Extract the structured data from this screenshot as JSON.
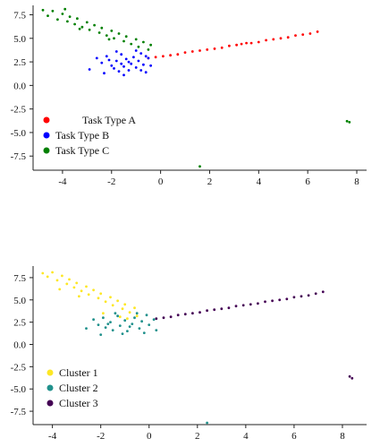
{
  "chart_data": [
    {
      "type": "scatter",
      "title": "",
      "xlabel": "",
      "ylabel": "",
      "xlim": [
        -5.2,
        8.4
      ],
      "ylim": [
        -9.0,
        8.5
      ],
      "x_ticks": [
        "-4",
        "-2",
        "0",
        "2",
        "4",
        "6",
        "8"
      ],
      "y_ticks": [
        "7.5",
        "5.0",
        "2.5",
        "0.0",
        "-2.5",
        "-5.0",
        "-7.5"
      ],
      "legend_position": "lower-left",
      "grid": false,
      "series": [
        {
          "name": "Task Type A",
          "color": "#ff0000",
          "points": [
            [
              -0.5,
              2.9
            ],
            [
              -0.2,
              3.0
            ],
            [
              0.1,
              3.1
            ],
            [
              0.4,
              3.2
            ],
            [
              0.7,
              3.3
            ],
            [
              1.0,
              3.5
            ],
            [
              1.3,
              3.6
            ],
            [
              1.6,
              3.7
            ],
            [
              1.9,
              3.8
            ],
            [
              2.2,
              3.9
            ],
            [
              2.5,
              4.0
            ],
            [
              2.8,
              4.2
            ],
            [
              3.1,
              4.3
            ],
            [
              3.3,
              4.4
            ],
            [
              3.5,
              4.5
            ],
            [
              3.7,
              4.5
            ],
            [
              4.0,
              4.6
            ],
            [
              4.3,
              4.8
            ],
            [
              4.6,
              4.9
            ],
            [
              4.9,
              5.0
            ],
            [
              5.2,
              5.1
            ],
            [
              5.5,
              5.3
            ],
            [
              5.8,
              5.4
            ],
            [
              6.1,
              5.5
            ],
            [
              6.4,
              5.7
            ]
          ]
        },
        {
          "name": "Task Type B",
          "color": "#0000ff",
          "points": [
            [
              -2.6,
              2.9
            ],
            [
              -2.4,
              2.4
            ],
            [
              -2.2,
              3.1
            ],
            [
              -2.0,
              2.1
            ],
            [
              -1.9,
              1.8
            ],
            [
              -1.8,
              2.6
            ],
            [
              -1.7,
              1.5
            ],
            [
              -1.6,
              3.3
            ],
            [
              -1.5,
              2.0
            ],
            [
              -1.4,
              2.8
            ],
            [
              -1.3,
              1.6
            ],
            [
              -1.2,
              2.3
            ],
            [
              -1.1,
              3.0
            ],
            [
              -1.0,
              1.9
            ],
            [
              -0.9,
              2.6
            ],
            [
              -0.8,
              3.4
            ],
            [
              -0.7,
              2.2
            ],
            [
              -0.6,
              1.4
            ],
            [
              -0.5,
              2.9
            ],
            [
              -0.4,
              2.1
            ],
            [
              -2.9,
              1.7
            ],
            [
              -2.3,
              1.3
            ],
            [
              -1.8,
              3.6
            ],
            [
              -1.5,
              1.1
            ],
            [
              -1.0,
              3.7
            ],
            [
              -0.6,
              3.1
            ],
            [
              -2.1,
              2.7
            ],
            [
              -1.3,
              2.5
            ],
            [
              -0.8,
              1.6
            ],
            [
              -1.6,
              2.3
            ]
          ]
        },
        {
          "name": "Task Type C",
          "color": "#008000",
          "points": [
            [
              -4.8,
              8.0
            ],
            [
              -4.6,
              7.4
            ],
            [
              -4.4,
              7.9
            ],
            [
              -4.2,
              7.0
            ],
            [
              -4.0,
              7.6
            ],
            [
              -3.8,
              6.8
            ],
            [
              -3.7,
              7.3
            ],
            [
              -3.5,
              6.5
            ],
            [
              -3.4,
              7.1
            ],
            [
              -3.2,
              6.2
            ],
            [
              -3.0,
              6.7
            ],
            [
              -2.9,
              5.9
            ],
            [
              -2.7,
              6.4
            ],
            [
              -2.5,
              5.6
            ],
            [
              -2.4,
              6.1
            ],
            [
              -2.2,
              5.3
            ],
            [
              -2.0,
              5.8
            ],
            [
              -1.9,
              5.0
            ],
            [
              -1.7,
              5.5
            ],
            [
              -1.5,
              4.7
            ],
            [
              -1.4,
              5.2
            ],
            [
              -1.2,
              4.4
            ],
            [
              -1.0,
              4.9
            ],
            [
              -0.9,
              4.1
            ],
            [
              -0.7,
              4.6
            ],
            [
              -0.5,
              3.8
            ],
            [
              -0.4,
              4.3
            ],
            [
              -3.9,
              8.1
            ],
            [
              -3.3,
              6.0
            ],
            [
              -2.1,
              4.9
            ],
            [
              1.6,
              -8.6
            ],
            [
              7.6,
              -3.8
            ],
            [
              7.7,
              -3.9
            ]
          ]
        }
      ]
    },
    {
      "type": "scatter",
      "title": "",
      "xlabel": "",
      "ylabel": "",
      "xlim": [
        -4.8,
        9.0
      ],
      "ylim": [
        -9.0,
        8.8
      ],
      "x_ticks": [
        "-4",
        "-2",
        "0",
        "2",
        "4",
        "6",
        "8"
      ],
      "y_ticks": [
        "7.5",
        "5.0",
        "2.5",
        "0.0",
        "-2.5",
        "-5.0",
        "-7.5"
      ],
      "legend_position": "lower-left",
      "grid": false,
      "series": [
        {
          "name": "Cluster 1",
          "color": "#fde725",
          "points": [
            [
              -4.4,
              8.0
            ],
            [
              -4.2,
              7.6
            ],
            [
              -4.0,
              8.1
            ],
            [
              -3.8,
              7.2
            ],
            [
              -3.6,
              7.7
            ],
            [
              -3.4,
              6.8
            ],
            [
              -3.3,
              7.3
            ],
            [
              -3.1,
              6.4
            ],
            [
              -3.0,
              6.9
            ],
            [
              -2.8,
              6.0
            ],
            [
              -2.6,
              6.5
            ],
            [
              -2.5,
              5.6
            ],
            [
              -2.3,
              6.1
            ],
            [
              -2.1,
              5.2
            ],
            [
              -2.0,
              5.7
            ],
            [
              -1.8,
              4.8
            ],
            [
              -1.6,
              5.3
            ],
            [
              -1.5,
              4.4
            ],
            [
              -1.3,
              4.9
            ],
            [
              -1.1,
              4.0
            ],
            [
              -1.0,
              4.5
            ],
            [
              -0.8,
              3.6
            ],
            [
              -0.6,
              4.1
            ],
            [
              -0.5,
              3.2
            ],
            [
              -3.7,
              6.2
            ],
            [
              -2.9,
              5.4
            ],
            [
              -1.9,
              3.5
            ],
            [
              -1.2,
              3.1
            ],
            [
              -0.9,
              2.9
            ]
          ]
        },
        {
          "name": "Cluster 2",
          "color": "#21918c",
          "points": [
            [
              -2.3,
              2.8
            ],
            [
              -2.1,
              2.2
            ],
            [
              -1.9,
              3.0
            ],
            [
              -1.8,
              1.9
            ],
            [
              -1.6,
              2.5
            ],
            [
              -1.5,
              1.6
            ],
            [
              -1.3,
              3.2
            ],
            [
              -1.2,
              2.1
            ],
            [
              -1.0,
              2.7
            ],
            [
              -0.9,
              1.5
            ],
            [
              -0.7,
              2.3
            ],
            [
              -0.6,
              3.0
            ],
            [
              -0.4,
              1.8
            ],
            [
              -0.3,
              2.6
            ],
            [
              -0.1,
              3.3
            ],
            [
              0.0,
              2.2
            ],
            [
              0.2,
              2.8
            ],
            [
              0.3,
              1.6
            ],
            [
              -2.6,
              1.8
            ],
            [
              -2.0,
              1.1
            ],
            [
              -1.4,
              3.5
            ],
            [
              -1.1,
              1.2
            ],
            [
              -0.5,
              3.5
            ],
            [
              -0.2,
              1.3
            ],
            [
              -1.7,
              2.3
            ],
            [
              -0.8,
              2.0
            ],
            [
              2.4,
              -8.8
            ]
          ]
        },
        {
          "name": "Cluster 3",
          "color": "#440154",
          "points": [
            [
              0.3,
              2.9
            ],
            [
              0.6,
              3.0
            ],
            [
              0.9,
              3.1
            ],
            [
              1.2,
              3.3
            ],
            [
              1.5,
              3.4
            ],
            [
              1.8,
              3.5
            ],
            [
              2.1,
              3.6
            ],
            [
              2.4,
              3.8
            ],
            [
              2.7,
              3.9
            ],
            [
              3.0,
              4.0
            ],
            [
              3.3,
              4.1
            ],
            [
              3.6,
              4.3
            ],
            [
              3.9,
              4.4
            ],
            [
              4.2,
              4.5
            ],
            [
              4.5,
              4.6
            ],
            [
              4.8,
              4.8
            ],
            [
              5.1,
              4.9
            ],
            [
              5.4,
              5.0
            ],
            [
              5.7,
              5.1
            ],
            [
              6.0,
              5.3
            ],
            [
              6.3,
              5.4
            ],
            [
              6.6,
              5.5
            ],
            [
              6.9,
              5.7
            ],
            [
              7.2,
              5.9
            ],
            [
              8.3,
              -3.6
            ],
            [
              8.4,
              -3.8
            ]
          ]
        }
      ]
    }
  ]
}
